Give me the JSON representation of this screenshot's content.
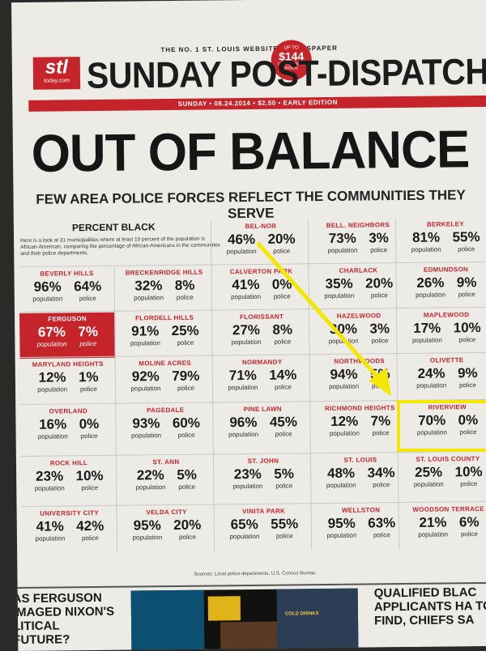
{
  "header": {
    "tagline": "THE NO. 1 ST. LOUIS WEBSITE & NEWSPAPER",
    "coupon_top": "UP TO",
    "coupon_amount": "$144",
    "coupon_bottom": "OF COUPONS INSIDE",
    "logo_main": "stl",
    "logo_sub": "today.com",
    "masthead": "SUNDAY POST-DISPATCH",
    "dateline": "SUNDAY • 08.24.2014 • $2.50 • EARLY EDITION"
  },
  "headline": "OUT OF BALANCE",
  "deck": "FEW AREA POLICE FORCES REFLECT THE COMMUNITIES THEY SERVE",
  "graphic": {
    "title": "PERCENT BLACK",
    "intro": "Here is a look at 31 municipalities where at least 10 percent of the population is African-American, comparing the percentage of African-Americans in the communities and their police departments.",
    "label_population": "population",
    "label_police": "police",
    "cities": [
      {
        "name": "BEL-NOR",
        "population": "46%",
        "police": "20%"
      },
      {
        "name": "BELL. NEIGHBORS",
        "population": "73%",
        "police": "3%"
      },
      {
        "name": "BERKELEY",
        "population": "81%",
        "police": "55%"
      },
      {
        "name": "BEVERLY HILLS",
        "population": "96%",
        "police": "64%"
      },
      {
        "name": "BRECKENRIDGE HILLS",
        "population": "32%",
        "police": "8%"
      },
      {
        "name": "CALVERTON PARK",
        "population": "41%",
        "police": "0%"
      },
      {
        "name": "CHARLACK",
        "population": "35%",
        "police": "20%"
      },
      {
        "name": "EDMUNDSON",
        "population": "26%",
        "police": "9%"
      },
      {
        "name": "FERGUSON",
        "population": "67%",
        "police": "7%"
      },
      {
        "name": "FLORDELL HILLS",
        "population": "91%",
        "police": "25%"
      },
      {
        "name": "FLORISSANT",
        "population": "27%",
        "police": "8%"
      },
      {
        "name": "HAZELWOOD",
        "population": "30%",
        "police": "3%"
      },
      {
        "name": "MAPLEWOOD",
        "population": "17%",
        "police": "10%"
      },
      {
        "name": "MARYLAND HEIGHTS",
        "population": "12%",
        "police": "1%"
      },
      {
        "name": "MOLINE ACRES",
        "population": "92%",
        "police": "79%"
      },
      {
        "name": "NORMANDY",
        "population": "71%",
        "police": "14%"
      },
      {
        "name": "NORTHWOODS",
        "population": "94%",
        "police": "5%"
      },
      {
        "name": "OLIVETTE",
        "population": "24%",
        "police": "9%"
      },
      {
        "name": "OVERLAND",
        "population": "16%",
        "police": "0%"
      },
      {
        "name": "PAGEDALE",
        "population": "93%",
        "police": "60%"
      },
      {
        "name": "PINE LAWN",
        "population": "96%",
        "police": "45%"
      },
      {
        "name": "RICHMOND HEIGHTS",
        "population": "12%",
        "police": "7%"
      },
      {
        "name": "RIVERVIEW",
        "population": "70%",
        "police": "0%"
      },
      {
        "name": "ROCK HILL",
        "population": "23%",
        "police": "10%"
      },
      {
        "name": "ST. ANN",
        "population": "22%",
        "police": "5%"
      },
      {
        "name": "ST. JOHN",
        "population": "23%",
        "police": "5%"
      },
      {
        "name": "ST. LOUIS",
        "population": "48%",
        "police": "34%"
      },
      {
        "name": "ST. LOUIS COUNTY",
        "population": "25%",
        "police": "10%"
      },
      {
        "name": "UNIVERSITY CITY",
        "population": "41%",
        "police": "42%"
      },
      {
        "name": "VELDA CITY",
        "population": "95%",
        "police": "20%"
      },
      {
        "name": "VINITA PARK",
        "population": "65%",
        "police": "55%"
      },
      {
        "name": "WELLSTON",
        "population": "95%",
        "police": "63%"
      },
      {
        "name": "WOODSON TERRACE",
        "population": "21%",
        "police": "6%"
      }
    ],
    "sources": "Sources: Local police departments, U.S. Census Bureau"
  },
  "teasers": {
    "left": "AS FERGUSON IMAGED NIXON'S LITICAL FUTURE?",
    "right": "QUALIFIED BLAC APPLICANTS HA TO FIND, CHIEFS SA",
    "photo_sign": "COLD DRINKS"
  },
  "colors": {
    "accent": "#c5242a",
    "highlight": "#f3e600",
    "paper": "#ecebe6"
  }
}
